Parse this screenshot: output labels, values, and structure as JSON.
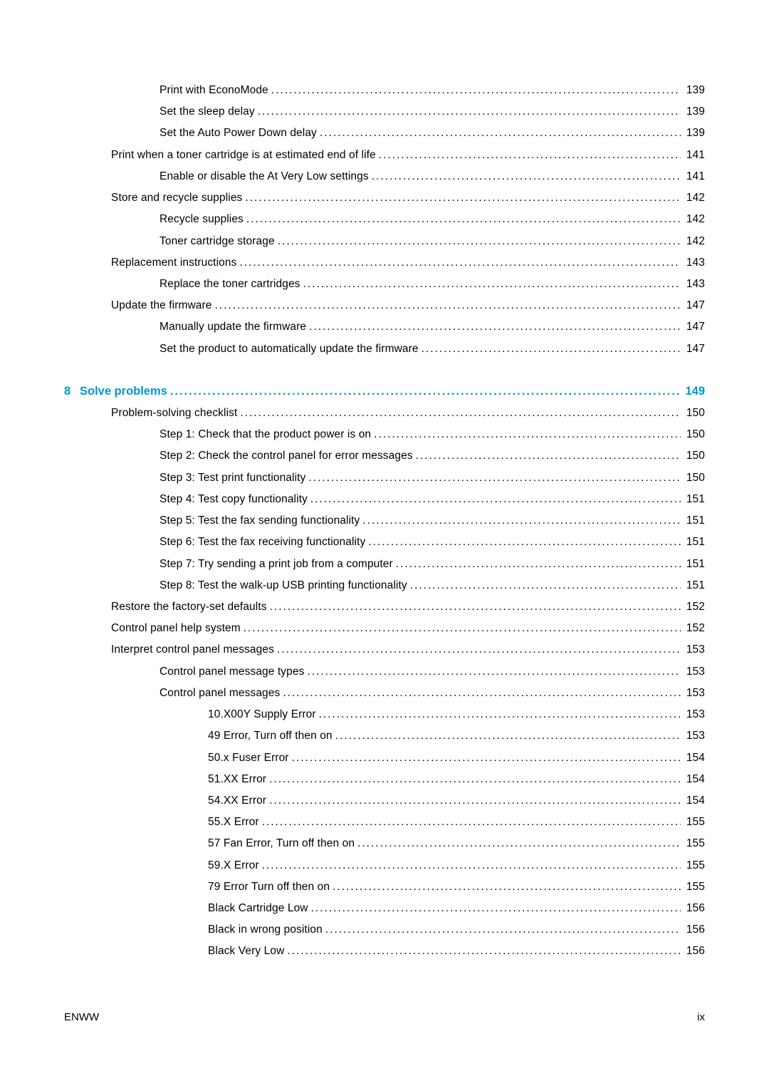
{
  "typography": {
    "body_font": "Futura / Century Gothic",
    "body_size_pt": 11,
    "chapter_size_pt": 12,
    "text_color": "#000000",
    "chapter_color": "#0096d6",
    "background_color": "#ffffff",
    "line_height": 1.95
  },
  "groups": [
    {
      "kind": "entries",
      "entries": [
        {
          "level": 3,
          "label": "Print with EconoMode",
          "page": "139"
        },
        {
          "level": 3,
          "label": "Set the sleep delay",
          "page": "139"
        },
        {
          "level": 3,
          "label": "Set the Auto Power Down delay",
          "page": "139"
        },
        {
          "level": 2,
          "label": "Print when a toner cartridge is at estimated end of life",
          "page": "141"
        },
        {
          "level": 3,
          "label": "Enable or disable the At Very Low settings",
          "page": "141"
        },
        {
          "level": 2,
          "label": "Store and recycle supplies",
          "page": "142"
        },
        {
          "level": 3,
          "label": "Recycle supplies",
          "page": "142"
        },
        {
          "level": 3,
          "label": "Toner cartridge storage",
          "page": "142"
        },
        {
          "level": 2,
          "label": "Replacement instructions",
          "page": "143"
        },
        {
          "level": 3,
          "label": "Replace the toner cartridges",
          "page": "143"
        },
        {
          "level": 2,
          "label": "Update the firmware",
          "page": "147"
        },
        {
          "level": 3,
          "label": "Manually update the firmware",
          "page": "147"
        },
        {
          "level": 3,
          "label": "Set the product to automatically update the firmware",
          "page": "147"
        }
      ]
    },
    {
      "kind": "chapter",
      "num": "8",
      "label": "Solve problems",
      "page": "149",
      "entries": [
        {
          "level": 2,
          "label": "Problem-solving checklist",
          "page": "150"
        },
        {
          "level": 3,
          "label": "Step 1: Check that the product power is on",
          "page": "150"
        },
        {
          "level": 3,
          "label": "Step 2: Check the control panel for error messages",
          "page": "150"
        },
        {
          "level": 3,
          "label": "Step 3: Test print functionality",
          "page": "150"
        },
        {
          "level": 3,
          "label": "Step 4: Test copy functionality",
          "page": "151"
        },
        {
          "level": 3,
          "label": "Step 5: Test the fax sending functionality",
          "page": "151"
        },
        {
          "level": 3,
          "label": "Step 6: Test the fax receiving functionality",
          "page": "151"
        },
        {
          "level": 3,
          "label": "Step 7: Try sending a print job from a computer",
          "page": "151"
        },
        {
          "level": 3,
          "label": "Step 8: Test the walk-up USB printing functionality",
          "page": "151"
        },
        {
          "level": 2,
          "label": "Restore the factory-set defaults",
          "page": "152"
        },
        {
          "level": 2,
          "label": "Control panel help system",
          "page": "152"
        },
        {
          "level": 2,
          "label": "Interpret control panel messages",
          "page": "153"
        },
        {
          "level": 3,
          "label": "Control panel message types",
          "page": "153"
        },
        {
          "level": 3,
          "label": "Control panel messages",
          "page": "153"
        },
        {
          "level": 4,
          "label": "10.X00Y Supply Error",
          "page": "153"
        },
        {
          "level": 4,
          "label": "49 Error, Turn off then on",
          "page": "153"
        },
        {
          "level": 4,
          "label": "50.x Fuser Error",
          "page": "154"
        },
        {
          "level": 4,
          "label": "51.XX Error",
          "page": "154"
        },
        {
          "level": 4,
          "label": "54.XX Error",
          "page": "154"
        },
        {
          "level": 4,
          "label": "55.X Error",
          "page": "155"
        },
        {
          "level": 4,
          "label": "57 Fan Error, Turn off then on",
          "page": "155"
        },
        {
          "level": 4,
          "label": "59.X Error",
          "page": "155"
        },
        {
          "level": 4,
          "label": "79 Error Turn off then on",
          "page": "155"
        },
        {
          "level": 4,
          "label": "Black Cartridge Low",
          "page": "156"
        },
        {
          "level": 4,
          "label": "Black in wrong position",
          "page": "156"
        },
        {
          "level": 4,
          "label": "Black Very Low",
          "page": "156"
        }
      ]
    }
  ],
  "footer": {
    "left": "ENWW",
    "right": "ix"
  }
}
